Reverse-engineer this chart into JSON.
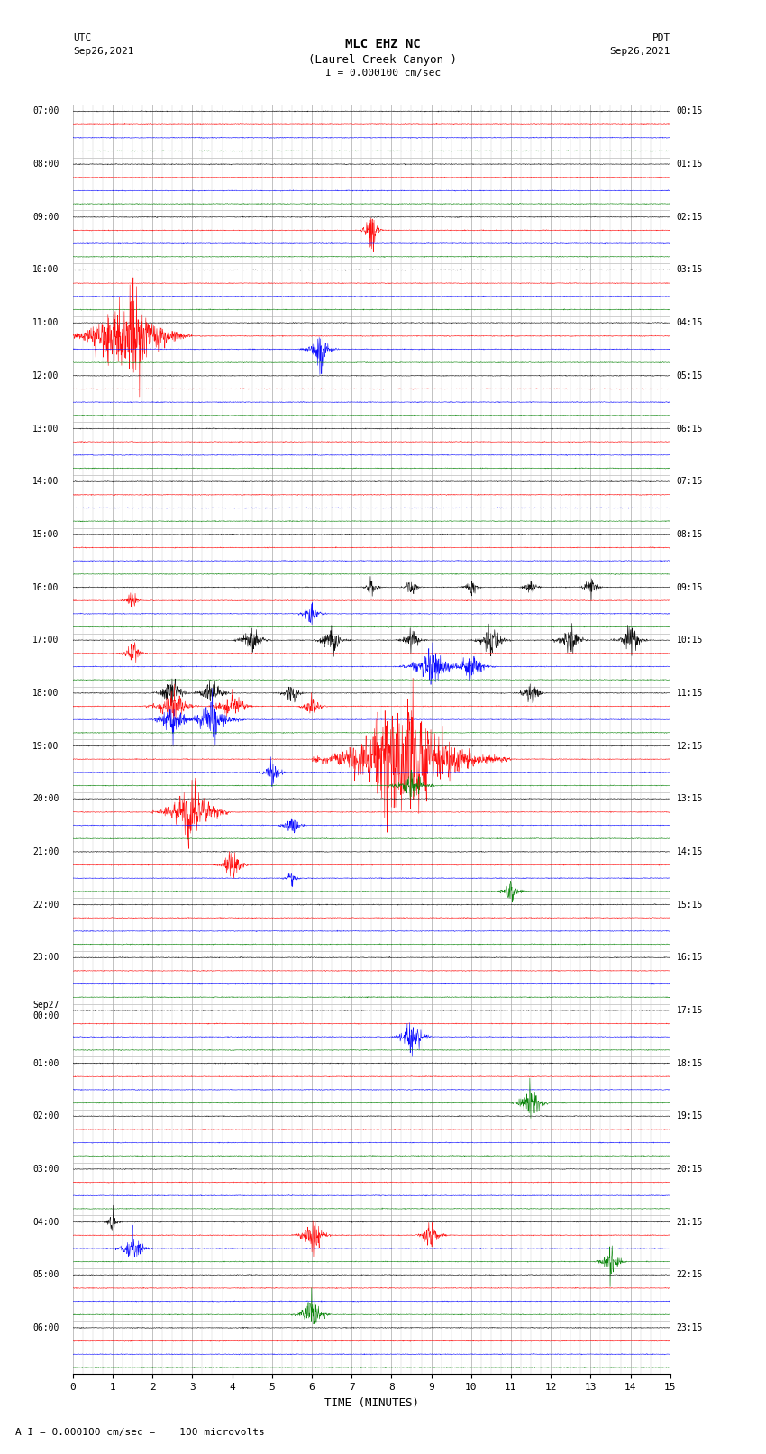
{
  "title_line1": "MLC EHZ NC",
  "title_line2": "(Laurel Creek Canyon )",
  "scale_text": "I = 0.000100 cm/sec",
  "utc_label": "UTC",
  "utc_date": "Sep26,2021",
  "pdt_label": "PDT",
  "pdt_date": "Sep26,2021",
  "xlabel": "TIME (MINUTES)",
  "footer_text": "A I = 0.000100 cm/sec =    100 microvolts",
  "bg_color": "#ffffff",
  "trace_colors": [
    "black",
    "red",
    "blue",
    "green"
  ],
  "num_rows": 24,
  "traces_per_row": 4,
  "xlim": [
    0,
    15
  ],
  "xticks": [
    0,
    1,
    2,
    3,
    4,
    5,
    6,
    7,
    8,
    9,
    10,
    11,
    12,
    13,
    14,
    15
  ],
  "left_times_utc": [
    "07:00",
    "",
    "",
    "",
    "08:00",
    "",
    "",
    "",
    "09:00",
    "",
    "",
    "",
    "10:00",
    "",
    "",
    "",
    "11:00",
    "",
    "",
    "",
    "12:00",
    "",
    "",
    "",
    "13:00",
    "",
    "",
    "",
    "14:00",
    "",
    "",
    "",
    "15:00",
    "",
    "",
    "",
    "16:00",
    "",
    "",
    "",
    "17:00",
    "",
    "",
    "",
    "18:00",
    "",
    "",
    "",
    "19:00",
    "",
    "",
    "",
    "20:00",
    "",
    "",
    "",
    "21:00",
    "",
    "",
    "",
    "22:00",
    "",
    "",
    "",
    "23:00",
    "",
    "",
    "",
    "Sep27\n00:00",
    "",
    "",
    "",
    "01:00",
    "",
    "",
    "",
    "02:00",
    "",
    "",
    "",
    "03:00",
    "",
    "",
    "",
    "04:00",
    "",
    "",
    "",
    "05:00",
    "",
    "",
    "",
    "06:00",
    "",
    "",
    ""
  ],
  "right_times_pdt": [
    "00:15",
    "",
    "",
    "",
    "01:15",
    "",
    "",
    "",
    "02:15",
    "",
    "",
    "",
    "03:15",
    "",
    "",
    "",
    "04:15",
    "",
    "",
    "",
    "05:15",
    "",
    "",
    "",
    "06:15",
    "",
    "",
    "",
    "07:15",
    "",
    "",
    "",
    "08:15",
    "",
    "",
    "",
    "09:15",
    "",
    "",
    "",
    "10:15",
    "",
    "",
    "",
    "11:15",
    "",
    "",
    "",
    "12:15",
    "",
    "",
    "",
    "13:15",
    "",
    "",
    "",
    "14:15",
    "",
    "",
    "",
    "15:15",
    "",
    "",
    "",
    "16:15",
    "",
    "",
    "",
    "17:15",
    "",
    "",
    "",
    "18:15",
    "",
    "",
    "",
    "19:15",
    "",
    "",
    "",
    "20:15",
    "",
    "",
    "",
    "21:15",
    "",
    "",
    "",
    "22:15",
    "",
    "",
    "",
    "23:15",
    "",
    "",
    ""
  ]
}
